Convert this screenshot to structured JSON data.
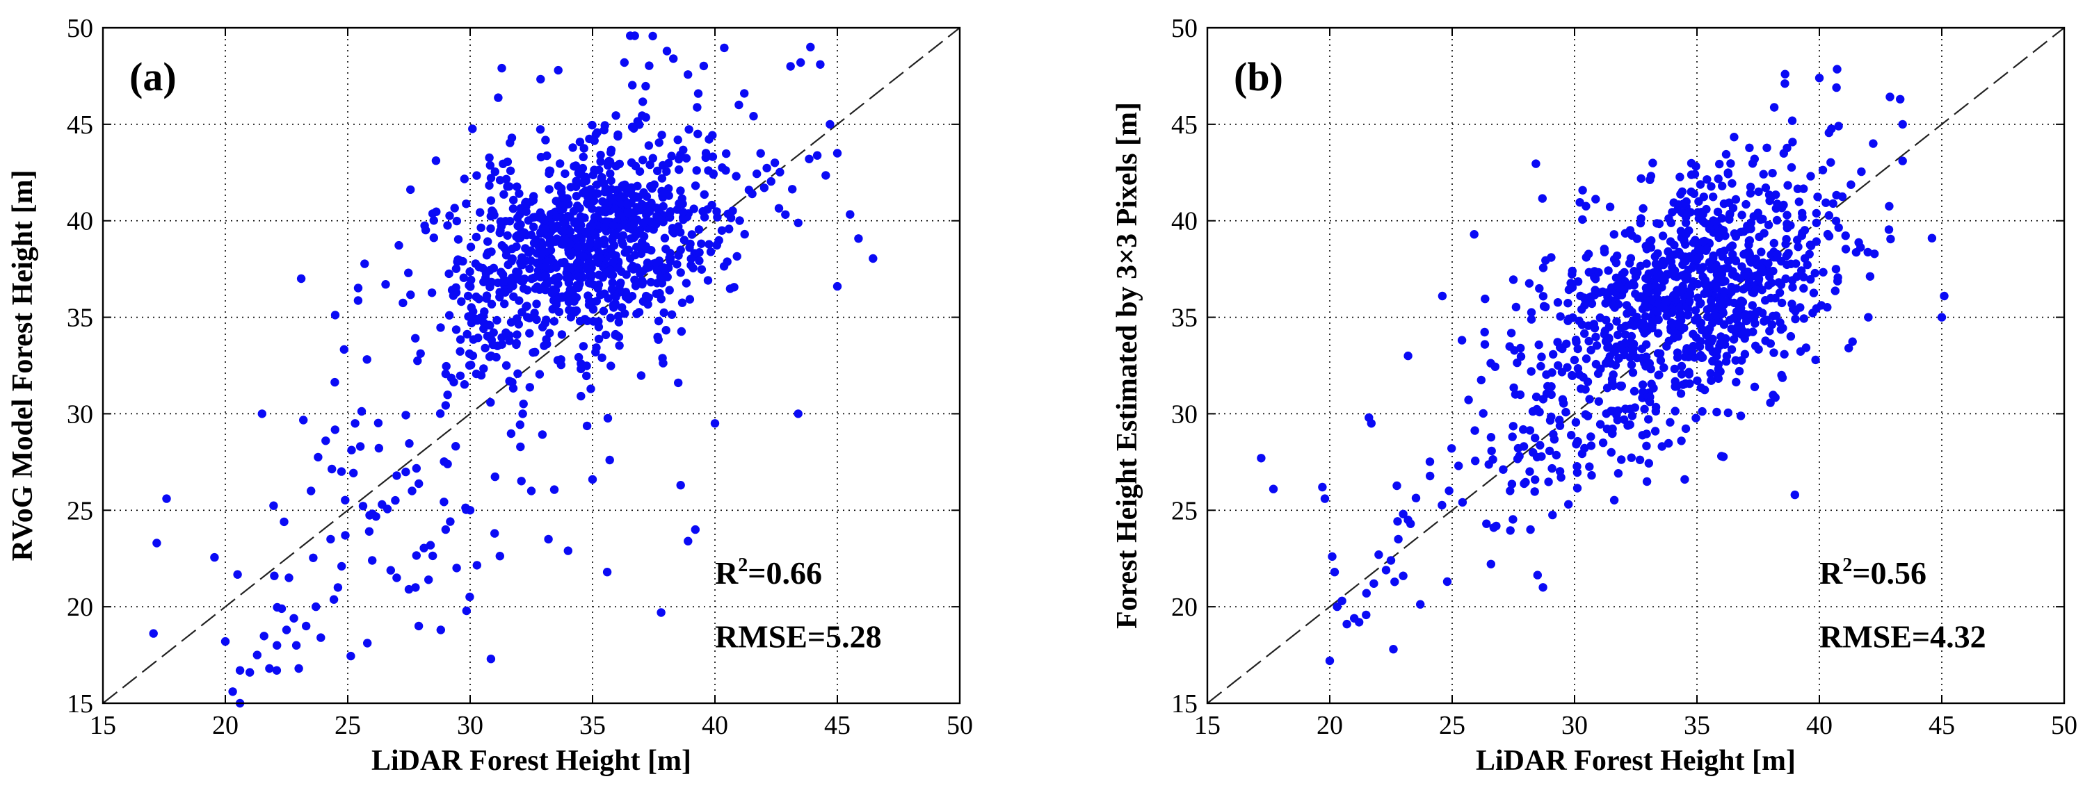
{
  "figure_title": "",
  "colors": {
    "points": "#0a0af5",
    "reference_line": "#222222",
    "background": "#ffffff"
  },
  "chart_data": [
    {
      "type": "scatter",
      "panel_label": "(a)",
      "title": "",
      "xlabel": "LiDAR Forest Height [m]",
      "ylabel": "RVoG Model Forest Height [m]",
      "xlim": [
        15,
        50
      ],
      "ylim": [
        15,
        50
      ],
      "xticks": [
        "15",
        "20",
        "25",
        "30",
        "35",
        "40",
        "45",
        "50"
      ],
      "yticks": [
        "15",
        "20",
        "25",
        "30",
        "35",
        "40",
        "45",
        "50"
      ],
      "grid": true,
      "reference_line": "1:1 dashed",
      "stats": {
        "r2_label": "R",
        "r2_sup": "2",
        "r2_value": "=0.66",
        "rmse": "RMSE=5.28"
      },
      "series": [
        {
          "name": "samples",
          "generated_sample_count": 1100,
          "seed": 7331,
          "points": [
            [
              17.2,
              23.3
            ],
            [
              17.6,
              25.6
            ],
            [
              20.0,
              18.2
            ],
            [
              20.3,
              15.6
            ],
            [
              20.6,
              16.7
            ],
            [
              20.6,
              15.0
            ],
            [
              21.0,
              16.6
            ],
            [
              21.3,
              17.5
            ],
            [
              21.5,
              30.0
            ],
            [
              21.8,
              16.8
            ],
            [
              22.0,
              21.6
            ],
            [
              22.1,
              16.7
            ],
            [
              22.3,
              19.9
            ],
            [
              22.4,
              24.4
            ],
            [
              22.5,
              18.8
            ],
            [
              22.6,
              21.5
            ],
            [
              22.8,
              19.4
            ],
            [
              22.9,
              18.0
            ],
            [
              23.0,
              16.8
            ],
            [
              23.1,
              37.0
            ],
            [
              23.3,
              19.0
            ],
            [
              23.5,
              26.0
            ],
            [
              23.7,
              20.0
            ],
            [
              23.9,
              18.4
            ],
            [
              24.1,
              28.6
            ],
            [
              24.3,
              23.5
            ],
            [
              24.6,
              21.0
            ],
            [
              24.9,
              23.7
            ],
            [
              25.3,
              29.5
            ],
            [
              26.0,
              22.4
            ],
            [
              26.4,
              25.3
            ],
            [
              27.0,
              21.5
            ],
            [
              27.5,
              20.9
            ],
            [
              27.9,
              19.0
            ],
            [
              28.3,
              21.4
            ],
            [
              28.8,
              18.8
            ],
            [
              29.0,
              24.0
            ],
            [
              30.0,
              25.0
            ],
            [
              31.0,
              23.8
            ],
            [
              32.5,
              26.0
            ],
            [
              33.2,
              23.5
            ],
            [
              34.0,
              22.9
            ],
            [
              35.0,
              26.6
            ],
            [
              35.6,
              21.8
            ],
            [
              37.8,
              19.7
            ],
            [
              38.6,
              26.3
            ],
            [
              38.9,
              23.4
            ],
            [
              39.2,
              24.0
            ],
            [
              40.0,
              29.5
            ],
            [
              43.4,
              30.0
            ],
            [
              45.0,
              36.6
            ],
            [
              43.5,
              48.2
            ],
            [
              43.9,
              49.0
            ],
            [
              44.3,
              48.1
            ],
            [
              44.7,
              45.0
            ],
            [
              45.0,
              43.5
            ],
            [
              38.3,
              48.4
            ],
            [
              36.3,
              48.2
            ],
            [
              33.6,
              47.8
            ],
            [
              41.2,
              46.6
            ]
          ]
        }
      ]
    },
    {
      "type": "scatter",
      "panel_label": "(b)",
      "title": "",
      "xlabel": "LiDAR Forest Height [m]",
      "ylabel": "Forest Height Estimated by 3×3 Pixels [m]",
      "xlim": [
        15,
        50
      ],
      "ylim": [
        15,
        50
      ],
      "xticks": [
        "15",
        "20",
        "25",
        "30",
        "35",
        "40",
        "45",
        "50"
      ],
      "yticks": [
        "15",
        "20",
        "25",
        "30",
        "35",
        "40",
        "45",
        "50"
      ],
      "grid": true,
      "reference_line": "1:1 dashed",
      "stats": {
        "r2_label": "R",
        "r2_sup": "2",
        "r2_value": "=0.56",
        "rmse": "RMSE=4.32"
      },
      "series": [
        {
          "name": "samples",
          "generated_sample_count": 1050,
          "seed": 4242,
          "points": [
            [
              17.2,
              27.7
            ],
            [
              17.7,
              26.1
            ],
            [
              19.7,
              26.2
            ],
            [
              19.8,
              25.6
            ],
            [
              20.0,
              17.2
            ],
            [
              20.1,
              22.6
            ],
            [
              20.2,
              21.8
            ],
            [
              20.3,
              20.0
            ],
            [
              20.5,
              20.3
            ],
            [
              20.7,
              19.1
            ],
            [
              21.0,
              19.4
            ],
            [
              21.2,
              19.2
            ],
            [
              21.5,
              20.7
            ],
            [
              21.8,
              21.2
            ],
            [
              22.0,
              22.7
            ],
            [
              22.3,
              21.9
            ],
            [
              22.5,
              22.4
            ],
            [
              22.6,
              17.8
            ],
            [
              22.8,
              23.5
            ],
            [
              23.0,
              24.8
            ],
            [
              23.2,
              24.5
            ],
            [
              23.0,
              21.6
            ],
            [
              23.3,
              24.3
            ],
            [
              21.6,
              29.8
            ],
            [
              21.7,
              29.5
            ],
            [
              23.2,
              33.0
            ],
            [
              24.6,
              36.1
            ],
            [
              24.8,
              21.3
            ],
            [
              25.9,
              39.3
            ],
            [
              26.4,
              24.3
            ],
            [
              26.7,
              24.1
            ],
            [
              28.2,
              24.0
            ],
            [
              31.5,
              28.0
            ],
            [
              34.5,
              26.6
            ],
            [
              36.0,
              27.8
            ],
            [
              39.0,
              25.8
            ],
            [
              38.6,
              47.6
            ],
            [
              40.0,
              47.4
            ],
            [
              40.7,
              46.9
            ],
            [
              42.2,
              44.0
            ],
            [
              43.3,
              46.3
            ],
            [
              43.4,
              45.0
            ],
            [
              44.6,
              39.1
            ],
            [
              45.0,
              35.0
            ],
            [
              45.1,
              36.1
            ],
            [
              43.4,
              43.1
            ],
            [
              42.0,
              35.0
            ],
            [
              41.2,
              33.4
            ]
          ]
        }
      ]
    }
  ]
}
